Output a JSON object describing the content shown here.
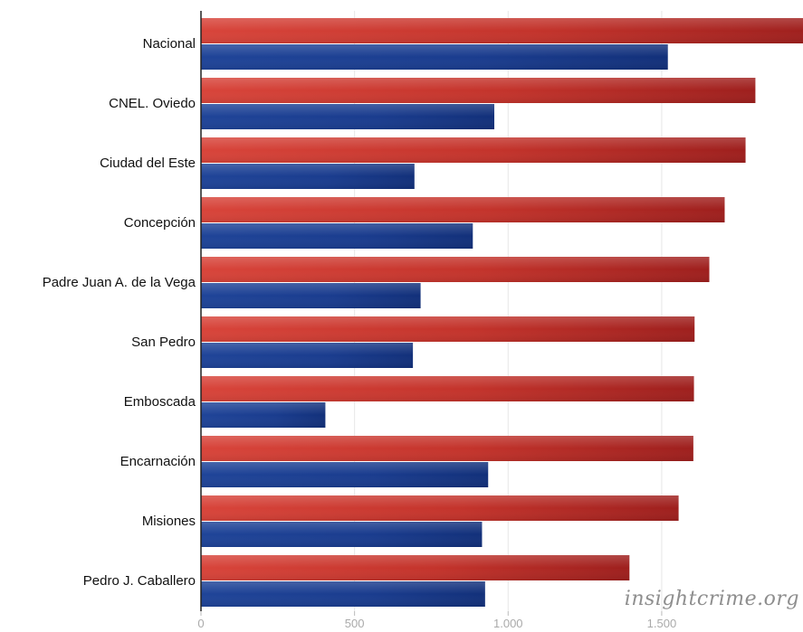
{
  "chart_data": {
    "type": "bar",
    "orientation": "horizontal",
    "categories": [
      "Nacional",
      "CNEL. Oviedo",
      "Ciudad del Este",
      "Concepción",
      "Padre Juan A. de la Vega",
      "San Pedro",
      "Emboscada",
      "Encarnación",
      "Misiones",
      "Pedro J. Caballero"
    ],
    "series": [
      {
        "color": "#c0302a",
        "values": [
          2000,
          1805,
          1773,
          1705,
          1655,
          1607,
          1605,
          1603,
          1555,
          1395
        ]
      },
      {
        "color": "#1d3f94",
        "values": [
          1520,
          955,
          695,
          885,
          715,
          690,
          405,
          935,
          915,
          925
        ]
      }
    ],
    "xlim": [
      0,
      1960
    ],
    "xticks": [
      0,
      500,
      1000,
      1500
    ],
    "xtick_labels": [
      "0",
      "500",
      "1.000",
      "1.500"
    ],
    "grid": true,
    "legend": "none"
  },
  "watermark": "insightcrime.org"
}
